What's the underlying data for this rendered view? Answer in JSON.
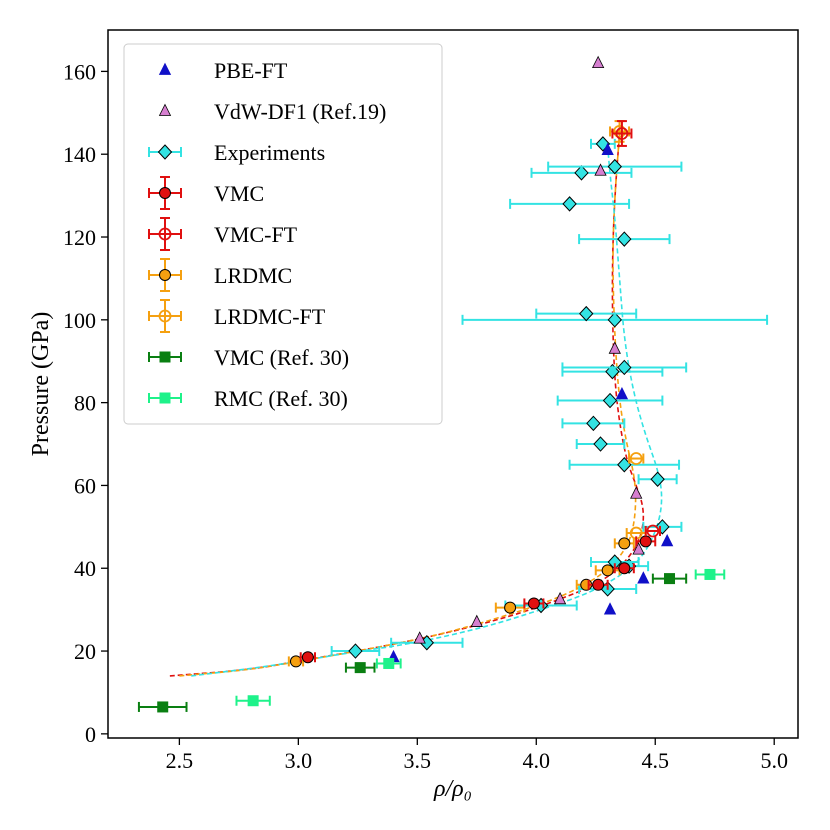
{
  "chart_data": {
    "type": "scatter",
    "xlabel": "ρ/ρ₀",
    "ylabel": "Pressure (GPa)",
    "xlim": [
      2.2,
      5.1
    ],
    "ylim": [
      -1,
      170
    ],
    "xticks": [
      "2.5",
      "3.0",
      "3.5",
      "4.0",
      "4.5",
      "5.0"
    ],
    "yticks": [
      "0",
      "20",
      "40",
      "60",
      "80",
      "100",
      "120",
      "140",
      "160"
    ],
    "grid": false,
    "legend_position": "top-left",
    "series": [
      {
        "name": "PBE-FT",
        "marker": "triangle",
        "color": "#1010c8",
        "filled": true,
        "points": [
          {
            "x": 3.4,
            "y": 18.5
          },
          {
            "x": 4.31,
            "y": 30.0
          },
          {
            "x": 4.45,
            "y": 37.5
          },
          {
            "x": 4.55,
            "y": 46.5
          },
          {
            "x": 4.36,
            "y": 82.0
          },
          {
            "x": 4.3,
            "y": 141.0
          }
        ]
      },
      {
        "name": "VdW-DF1 (Ref.19)",
        "marker": "triangle",
        "color": "#d67fd0",
        "filled": true,
        "points": [
          {
            "x": 3.51,
            "y": 23.0
          },
          {
            "x": 3.75,
            "y": 27.0
          },
          {
            "x": 4.1,
            "y": 32.5
          },
          {
            "x": 4.43,
            "y": 44.5
          },
          {
            "x": 4.42,
            "y": 58.0
          },
          {
            "x": 4.33,
            "y": 93.0
          },
          {
            "x": 4.27,
            "y": 136.0
          },
          {
            "x": 4.26,
            "y": 162.0
          }
        ]
      },
      {
        "name": "Experiments",
        "marker": "diamond",
        "color": "#33e3e3",
        "filled": true,
        "points": [
          {
            "x": 3.24,
            "y": 20.0,
            "xerr": 0.1
          },
          {
            "x": 3.54,
            "y": 22.0,
            "xerr": 0.15
          },
          {
            "x": 4.02,
            "y": 31.0,
            "xerr": 0.15
          },
          {
            "x": 4.3,
            "y": 35.0,
            "xerr": 0.12
          },
          {
            "x": 4.39,
            "y": 40.5,
            "xerr": 0.08
          },
          {
            "x": 4.33,
            "y": 41.5,
            "xerr": 0.1
          },
          {
            "x": 4.53,
            "y": 50.0,
            "xerr": 0.08
          },
          {
            "x": 4.51,
            "y": 61.5,
            "xerr": 0.08
          },
          {
            "x": 4.37,
            "y": 65.0,
            "xerr": 0.23
          },
          {
            "x": 4.27,
            "y": 70.0,
            "xerr": 0.1
          },
          {
            "x": 4.24,
            "y": 75.0,
            "xerr": 0.13
          },
          {
            "x": 4.31,
            "y": 80.5,
            "xerr": 0.22
          },
          {
            "x": 4.32,
            "y": 87.5,
            "xerr": 0.21
          },
          {
            "x": 4.37,
            "y": 88.5,
            "xerr": 0.26
          },
          {
            "x": 4.33,
            "y": 100.0,
            "xerr": 0.64
          },
          {
            "x": 4.21,
            "y": 101.5,
            "xerr": 0.21
          },
          {
            "x": 4.37,
            "y": 119.5,
            "xerr": 0.19
          },
          {
            "x": 4.14,
            "y": 128.0,
            "xerr": 0.25
          },
          {
            "x": 4.19,
            "y": 135.5,
            "xerr": 0.21
          },
          {
            "x": 4.33,
            "y": 137.0,
            "xerr": 0.28
          },
          {
            "x": 4.28,
            "y": 142.5,
            "xerr": 0.05
          }
        ]
      },
      {
        "name": "VMC",
        "marker": "circle",
        "color": "#e01010",
        "filled": true,
        "points": [
          {
            "x": 3.04,
            "y": 18.5,
            "xerr": 0.03
          },
          {
            "x": 3.99,
            "y": 31.5,
            "xerr": 0.04
          },
          {
            "x": 4.26,
            "y": 36.0,
            "xerr": 0.04
          },
          {
            "x": 4.37,
            "y": 40.0,
            "xerr": 0.04
          },
          {
            "x": 4.46,
            "y": 46.5,
            "xerr": 0.04
          }
        ]
      },
      {
        "name": "VMC-FT",
        "marker": "circle",
        "color": "#e01010",
        "filled": false,
        "points": [
          {
            "x": 4.49,
            "y": 49.0,
            "xerr": 0.03
          },
          {
            "x": 4.36,
            "y": 145.0,
            "xerr": 0.04,
            "yerr": 3.0
          }
        ]
      },
      {
        "name": "LRDMC",
        "marker": "circle",
        "color": "#f5a010",
        "filled": true,
        "points": [
          {
            "x": 2.99,
            "y": 17.5,
            "xerr": 0.03
          },
          {
            "x": 3.89,
            "y": 30.5,
            "xerr": 0.06
          },
          {
            "x": 4.21,
            "y": 36.0,
            "xerr": 0.04
          },
          {
            "x": 4.3,
            "y": 39.5,
            "xerr": 0.05
          },
          {
            "x": 4.37,
            "y": 46.0,
            "xerr": 0.04
          }
        ]
      },
      {
        "name": "LRDMC-FT",
        "marker": "circle",
        "color": "#f5a010",
        "filled": false,
        "points": [
          {
            "x": 4.42,
            "y": 48.5,
            "xerr": 0.04
          },
          {
            "x": 4.42,
            "y": 66.5,
            "xerr": 0.03
          },
          {
            "x": 4.35,
            "y": 145.5,
            "xerr": 0.04,
            "yerr": 2.5
          }
        ]
      },
      {
        "name": "VMC (Ref. 30)",
        "marker": "square",
        "color": "#0a7f12",
        "filled": true,
        "points": [
          {
            "x": 2.43,
            "y": 6.5,
            "xerr": 0.1
          },
          {
            "x": 3.26,
            "y": 16.0,
            "xerr": 0.06
          },
          {
            "x": 4.56,
            "y": 37.5,
            "xerr": 0.07
          }
        ]
      },
      {
        "name": "RMC (Ref. 30)",
        "marker": "square",
        "color": "#1ef28a",
        "filled": true,
        "points": [
          {
            "x": 2.81,
            "y": 8.0,
            "xerr": 0.07
          },
          {
            "x": 3.38,
            "y": 17.0,
            "xerr": 0.05
          },
          {
            "x": 4.73,
            "y": 38.5,
            "xerr": 0.06
          }
        ]
      }
    ],
    "fit_curves": [
      {
        "color": "#e01010",
        "points": [
          [
            2.46,
            14
          ],
          [
            2.8,
            15.5
          ],
          [
            3.04,
            18
          ],
          [
            3.3,
            20.5
          ],
          [
            3.6,
            24
          ],
          [
            3.9,
            28.5
          ],
          [
            4.1,
            32.5
          ],
          [
            4.25,
            36
          ],
          [
            4.35,
            40
          ],
          [
            4.42,
            45
          ],
          [
            4.45,
            50
          ],
          [
            4.45,
            55
          ],
          [
            4.42,
            60
          ],
          [
            4.38,
            66
          ],
          [
            4.35,
            75
          ],
          [
            4.33,
            85
          ],
          [
            4.32,
            100
          ],
          [
            4.32,
            115
          ],
          [
            4.33,
            130
          ],
          [
            4.35,
            145
          ]
        ]
      },
      {
        "color": "#f5a010",
        "points": [
          [
            2.5,
            14
          ],
          [
            2.8,
            15.5
          ],
          [
            3.0,
            17.5
          ],
          [
            3.3,
            20.5
          ],
          [
            3.6,
            24
          ],
          [
            3.9,
            29
          ],
          [
            4.1,
            33
          ],
          [
            4.22,
            36.5
          ],
          [
            4.31,
            40
          ],
          [
            4.38,
            45
          ],
          [
            4.41,
            50
          ],
          [
            4.42,
            57
          ],
          [
            4.41,
            63
          ],
          [
            4.38,
            70
          ],
          [
            4.35,
            80
          ],
          [
            4.33,
            95
          ],
          [
            4.32,
            115
          ],
          [
            4.33,
            130
          ],
          [
            4.35,
            145
          ]
        ]
      },
      {
        "color": "#33e3e3",
        "points": [
          [
            2.55,
            14
          ],
          [
            2.9,
            16.5
          ],
          [
            3.2,
            19.5
          ],
          [
            3.5,
            22
          ],
          [
            3.8,
            26
          ],
          [
            4.02,
            30
          ],
          [
            4.2,
            33.5
          ],
          [
            4.32,
            37
          ],
          [
            4.42,
            41
          ],
          [
            4.48,
            46
          ],
          [
            4.52,
            52
          ],
          [
            4.53,
            58
          ],
          [
            4.51,
            64
          ],
          [
            4.46,
            72
          ],
          [
            4.41,
            82
          ],
          [
            4.37,
            95
          ],
          [
            4.35,
            110
          ],
          [
            4.33,
            125
          ],
          [
            4.31,
            135
          ],
          [
            4.3,
            142
          ]
        ]
      }
    ]
  }
}
